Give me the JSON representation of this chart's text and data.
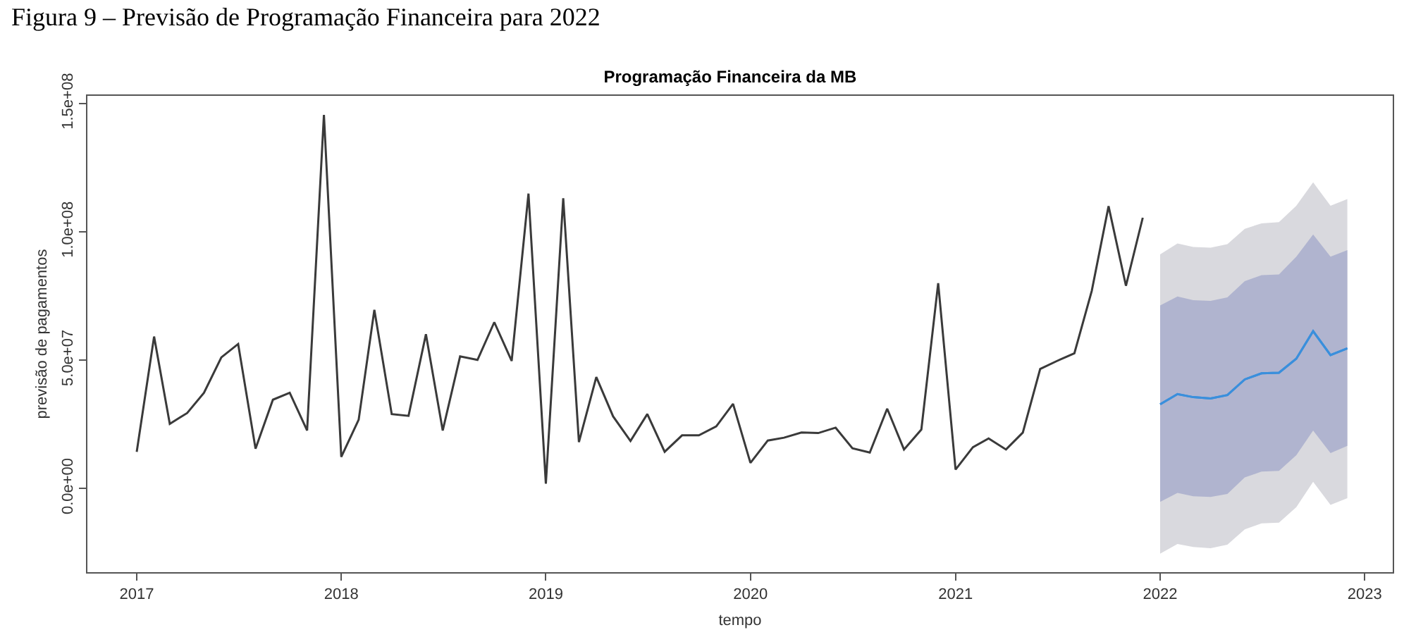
{
  "chart_data": {
    "type": "line",
    "title": "Programação Financeira da MB",
    "xlabel": "tempo",
    "ylabel": "previsão de pagamentos",
    "annotations": [
      "Figura 9 – Previsão de Programação Financeira para 2022"
    ],
    "xlim": [
      "2016-10-05",
      "2023-02-20"
    ],
    "xticks": [
      "2017",
      "2018",
      "2019",
      "2020",
      "2021",
      "2022",
      "2023"
    ],
    "ylim": [
      -32600000,
      153000000
    ],
    "yticks": [
      {
        "value": 0,
        "label": "0.0e+00"
      },
      {
        "value": 50000000,
        "label": "5.0e+07"
      },
      {
        "value": 100000000,
        "label": "1.0e+08"
      },
      {
        "value": 150000000,
        "label": "1.5e+08"
      }
    ],
    "grid": false,
    "marker": "none",
    "line_style": "solid",
    "series": [
      {
        "color": "#3a3a3a",
        "x": [
          "2017-01",
          "2017-02",
          "2017-03",
          "2017-04",
          "2017-05",
          "2017-06",
          "2017-07",
          "2017-08",
          "2017-09",
          "2017-10",
          "2017-11",
          "2017-12",
          "2018-01",
          "2018-02",
          "2018-03",
          "2018-04",
          "2018-05",
          "2018-06",
          "2018-07",
          "2018-08",
          "2018-09",
          "2018-10",
          "2018-11",
          "2018-12",
          "2019-01",
          "2019-02",
          "2019-03",
          "2019-04",
          "2019-05",
          "2019-06",
          "2019-07",
          "2019-08",
          "2019-09",
          "2019-10",
          "2019-11",
          "2019-12",
          "2020-01",
          "2020-02",
          "2020-03",
          "2020-04",
          "2020-05",
          "2020-06",
          "2020-07",
          "2020-08",
          "2020-09",
          "2020-10",
          "2020-11",
          "2020-12",
          "2021-01",
          "2021-02",
          "2021-03",
          "2021-04",
          "2021-05",
          "2021-06",
          "2021-07",
          "2021-08",
          "2021-09",
          "2021-10",
          "2021-11",
          "2021-12"
        ],
        "values": [
          14300000,
          59200000,
          25200000,
          29400000,
          37300000,
          51100000,
          56300000,
          15500000,
          34600000,
          37300000,
          22600000,
          145600000,
          12300000,
          26800000,
          69600000,
          29000000,
          28300000,
          60100000,
          22600000,
          51500000,
          50100000,
          64800000,
          49700000,
          114900000,
          1900000,
          113100000,
          18100000,
          43400000,
          28100000,
          18500000,
          29000000,
          14300000,
          20700000,
          20700000,
          24200000,
          33000000,
          10000000,
          18700000,
          19800000,
          21800000,
          21600000,
          23700000,
          15700000,
          14000000,
          31100000,
          15200000,
          23000000,
          80000000,
          7400000,
          16100000,
          19500000,
          15200000,
          21800000,
          46600000,
          49700000,
          52700000,
          77000000,
          110000000,
          79000000,
          105500000
        ]
      },
      {
        "color": "#3a8fdc",
        "x": [
          "2022-01",
          "2022-02",
          "2022-03",
          "2022-04",
          "2022-05",
          "2022-06",
          "2022-07",
          "2022-08",
          "2022-09",
          "2022-10",
          "2022-11",
          "2022-12"
        ],
        "values": [
          32800000,
          36800000,
          35600000,
          35100000,
          36400000,
          42500000,
          44900000,
          45100000,
          50600000,
          61300000,
          52000000,
          54600000
        ],
        "lower": [
          -25400000,
          -21600000,
          -22800000,
          -23300000,
          -21900000,
          -15900000,
          -13600000,
          -13300000,
          -7300000,
          2600000,
          -6400000,
          -3800000
        ],
        "upper": [
          91200000,
          95500000,
          94100000,
          93800000,
          95200000,
          101200000,
          103300000,
          103800000,
          110200000,
          119300000,
          110200000,
          112800000
        ]
      },
      {
        "color": "#3a8fdc",
        "x": [
          "2022-01",
          "2022-02",
          "2022-03",
          "2022-04",
          "2022-05",
          "2022-06",
          "2022-07",
          "2022-08",
          "2022-09",
          "2022-10",
          "2022-11",
          "2022-12"
        ],
        "values": [
          32800000,
          36800000,
          35600000,
          35100000,
          36400000,
          42500000,
          44900000,
          45100000,
          50600000,
          61300000,
          52000000,
          54600000
        ],
        "lower": [
          -5200000,
          -1700000,
          -3000000,
          -3300000,
          -2100000,
          4300000,
          6600000,
          6900000,
          13000000,
          22600000,
          13800000,
          16600000
        ],
        "upper": [
          71300000,
          74800000,
          73400000,
          73100000,
          74500000,
          80800000,
          83100000,
          83400000,
          90300000,
          99000000,
          90300000,
          92900000
        ]
      }
    ]
  }
}
